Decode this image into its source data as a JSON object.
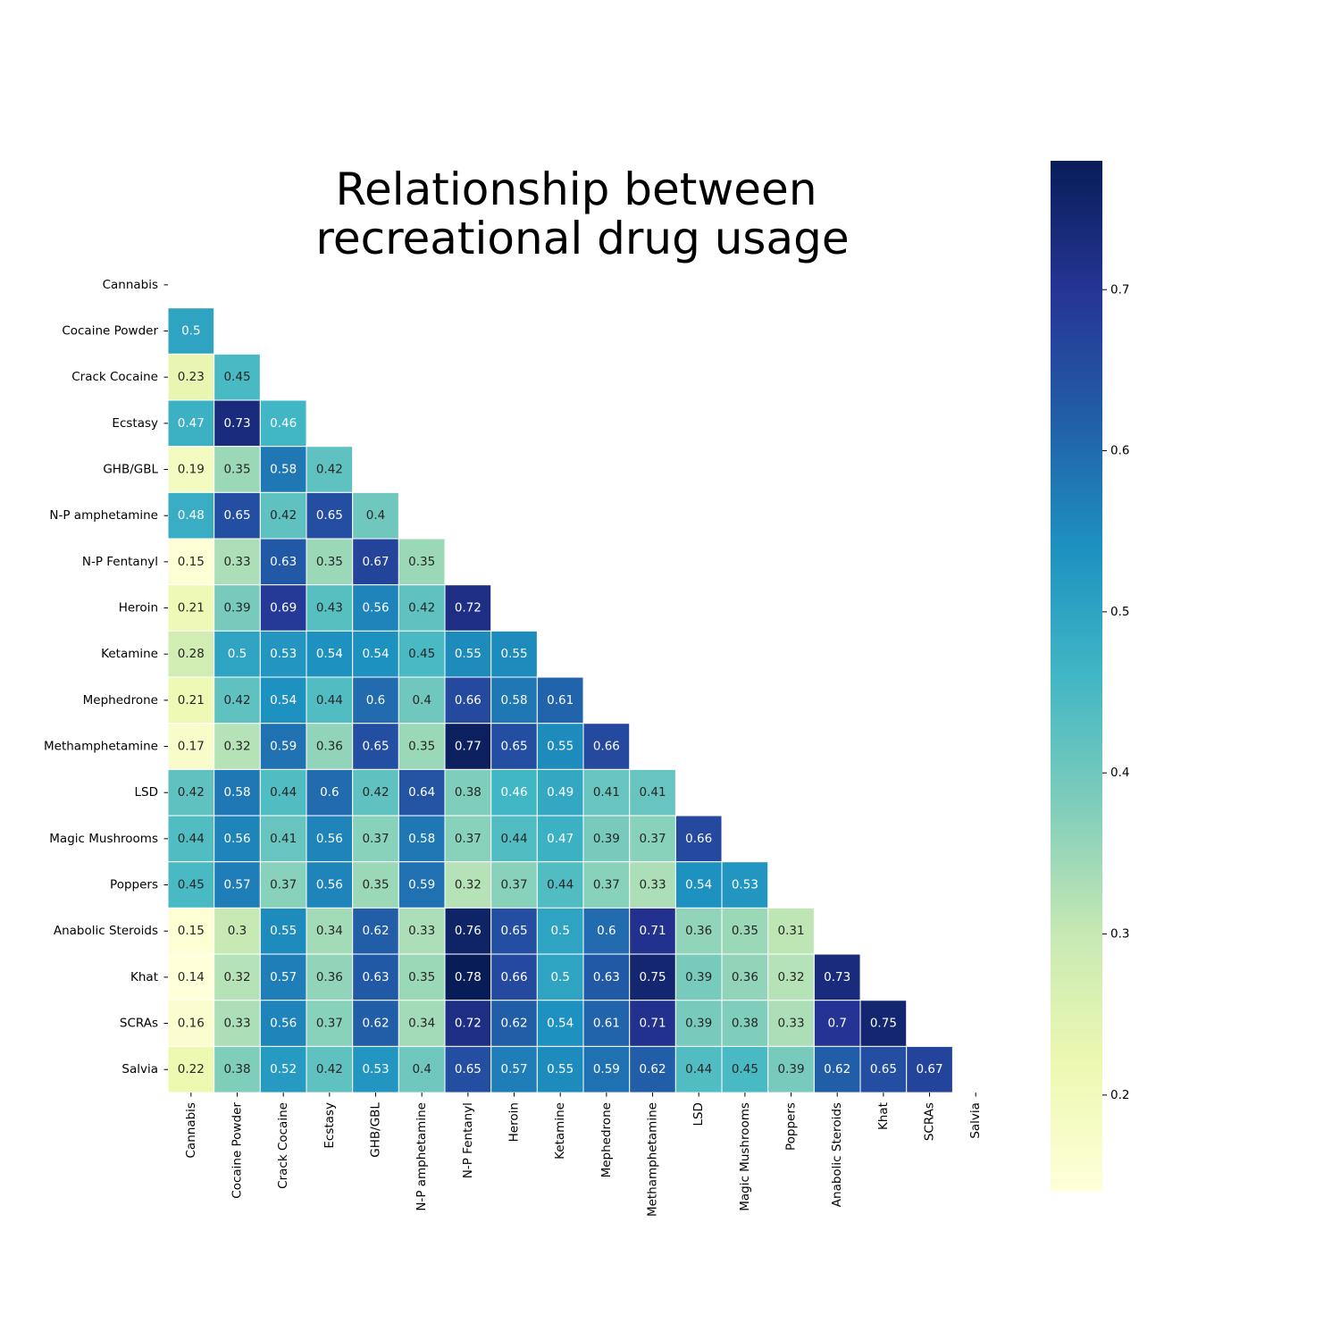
{
  "chart_data": {
    "type": "heatmap",
    "title_lines": [
      "Relationship between",
      "recreational drug usage"
    ],
    "row_labels": [
      "Cannabis",
      "Cocaine Powder",
      "Crack Cocaine",
      "Ecstasy",
      "GHB/GBL",
      "N-P amphetamine",
      "N-P Fentanyl",
      "Heroin",
      "Ketamine",
      "Mephedrone",
      "Methamphetamine",
      "LSD",
      "Magic Mushrooms",
      "Poppers",
      "Anabolic Steroids",
      "Khat",
      "SCRAs",
      "Salvia"
    ],
    "col_labels": [
      "Cannabis",
      "Cocaine Powder",
      "Crack Cocaine",
      "Ecstasy",
      "GHB/GBL",
      "N-P amphetamine",
      "N-P Fentanyl",
      "Heroin",
      "Ketamine",
      "Mephedrone",
      "Methamphetamine",
      "LSD",
      "Magic Mushrooms",
      "Poppers",
      "Anabolic Steroids",
      "Khat",
      "SCRAs",
      "Salvia"
    ],
    "matrix": [
      [],
      [
        0.5
      ],
      [
        0.23,
        0.45
      ],
      [
        0.47,
        0.73,
        0.46
      ],
      [
        0.19,
        0.35,
        0.58,
        0.42
      ],
      [
        0.48,
        0.65,
        0.42,
        0.65,
        0.4
      ],
      [
        0.15,
        0.33,
        0.63,
        0.35,
        0.67,
        0.35
      ],
      [
        0.21,
        0.39,
        0.69,
        0.43,
        0.56,
        0.42,
        0.72
      ],
      [
        0.28,
        0.5,
        0.53,
        0.54,
        0.54,
        0.45,
        0.55,
        0.55
      ],
      [
        0.21,
        0.42,
        0.54,
        0.44,
        0.6,
        0.4,
        0.66,
        0.58,
        0.61
      ],
      [
        0.17,
        0.32,
        0.59,
        0.36,
        0.65,
        0.35,
        0.77,
        0.65,
        0.55,
        0.66
      ],
      [
        0.42,
        0.58,
        0.44,
        0.6,
        0.42,
        0.64,
        0.38,
        0.46,
        0.49,
        0.41,
        0.41
      ],
      [
        0.44,
        0.56,
        0.41,
        0.56,
        0.37,
        0.58,
        0.37,
        0.44,
        0.47,
        0.39,
        0.37,
        0.66
      ],
      [
        0.45,
        0.57,
        0.37,
        0.56,
        0.35,
        0.59,
        0.32,
        0.37,
        0.44,
        0.37,
        0.33,
        0.54,
        0.53
      ],
      [
        0.15,
        0.3,
        0.55,
        0.34,
        0.62,
        0.33,
        0.76,
        0.65,
        0.5,
        0.6,
        0.71,
        0.36,
        0.35,
        0.31
      ],
      [
        0.14,
        0.32,
        0.57,
        0.36,
        0.63,
        0.35,
        0.78,
        0.66,
        0.5,
        0.63,
        0.75,
        0.39,
        0.36,
        0.32,
        0.73
      ],
      [
        0.16,
        0.33,
        0.56,
        0.37,
        0.62,
        0.34,
        0.72,
        0.62,
        0.54,
        0.61,
        0.71,
        0.39,
        0.38,
        0.33,
        0.7,
        0.75
      ],
      [
        0.22,
        0.38,
        0.52,
        0.42,
        0.53,
        0.4,
        0.65,
        0.57,
        0.55,
        0.59,
        0.62,
        0.44,
        0.45,
        0.39,
        0.62,
        0.65,
        0.67
      ]
    ],
    "mask": "upper triangle and diagonal hidden",
    "colormap": "YlGnBu",
    "vmin": 0.14,
    "vmax": 0.78,
    "colorbar_ticks": [
      0.2,
      0.3,
      0.4,
      0.5,
      0.6,
      0.7
    ],
    "colorbar_tick_labels": [
      "0.2",
      "0.3",
      "0.4",
      "0.5",
      "0.6",
      "0.7"
    ],
    "grid": false,
    "legend": "colorbar-right"
  }
}
